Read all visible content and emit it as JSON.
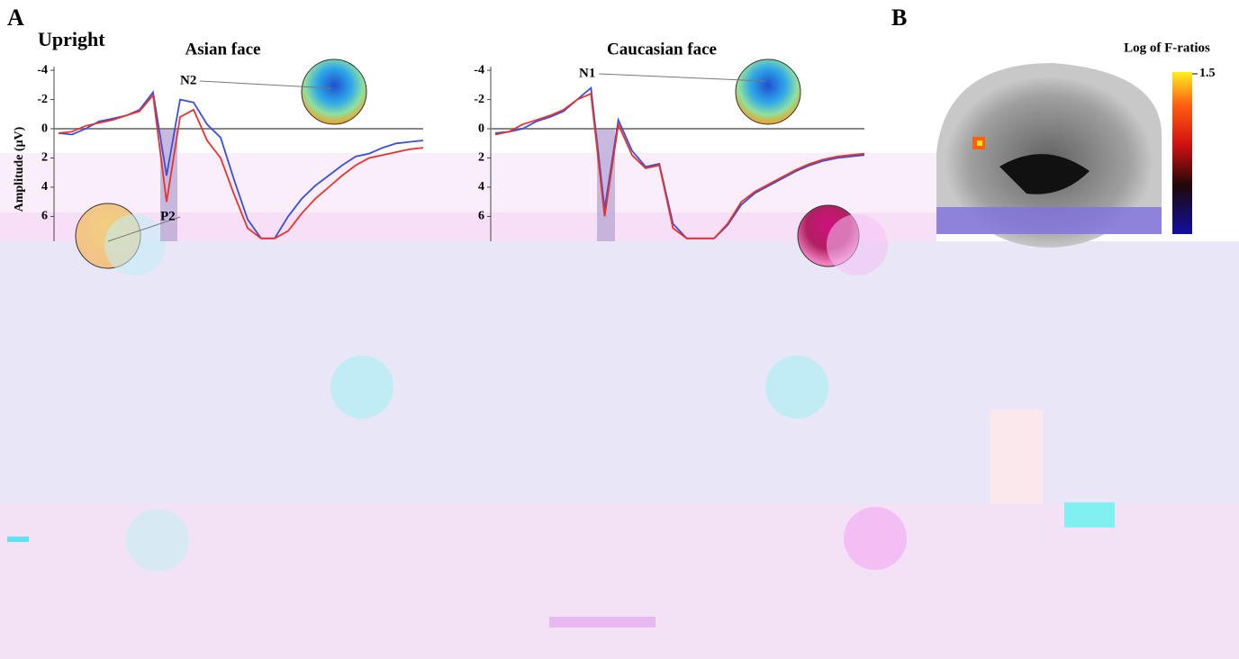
{
  "panel_labels": [
    "A",
    "B"
  ],
  "condition": "Upright",
  "colorbar": {
    "title": "Log of F-ratios",
    "max": 1.5
  },
  "chart_data": [
    {
      "type": "line",
      "title": "Asian face",
      "y_label": "Amplitude (μV)",
      "annotations": [
        "N2",
        "P2"
      ],
      "ylim": [
        -4.5,
        7.7
      ],
      "inverted": true,
      "yticks": [
        -4,
        -2,
        0,
        2,
        4,
        6
      ],
      "series": [
        {
          "color": "#3a4fd8",
          "values": [
            0.3,
            0.4,
            0.0,
            -0.5,
            -0.7,
            -0.9,
            -1.3,
            -2.5,
            3.2,
            -2.0,
            -1.8,
            -0.3,
            0.6,
            3.5,
            6.2,
            7.5,
            7.5,
            6.0,
            4.8,
            3.9,
            3.2,
            2.5,
            1.9,
            1.7,
            1.3,
            1.0,
            0.9,
            0.8
          ]
        },
        {
          "color": "#e8322d",
          "values": [
            0.3,
            0.2,
            -0.2,
            -0.4,
            -0.6,
            -0.9,
            -1.2,
            -2.3,
            5.0,
            -0.8,
            -1.3,
            0.8,
            2.0,
            4.5,
            6.8,
            7.5,
            7.5,
            7.0,
            5.8,
            4.8,
            4.0,
            3.2,
            2.5,
            2.0,
            1.8,
            1.6,
            1.4,
            1.3
          ]
        }
      ]
    },
    {
      "type": "line",
      "title": "Caucasian face",
      "annotations": [
        "N1"
      ],
      "ylim": [
        -4.5,
        7.7
      ],
      "inverted": true,
      "yticks": [
        -4,
        -2,
        0,
        2,
        4,
        6
      ],
      "series": [
        {
          "color": "#3a4fd8",
          "values": [
            0.3,
            0.2,
            0.0,
            -0.5,
            -0.8,
            -1.2,
            -2.0,
            -2.8,
            5.5,
            -0.6,
            1.5,
            2.6,
            2.4,
            6.5,
            7.5,
            7.5,
            7.5,
            6.6,
            5.2,
            4.4,
            3.9,
            3.4,
            2.9,
            2.5,
            2.2,
            2.0,
            1.9,
            1.8
          ]
        },
        {
          "color": "#e8322d",
          "values": [
            0.4,
            0.2,
            -0.3,
            -0.6,
            -0.9,
            -1.3,
            -2.0,
            -2.4,
            6.0,
            -0.3,
            1.8,
            2.7,
            2.5,
            6.8,
            7.5,
            7.5,
            7.5,
            6.5,
            5.0,
            4.3,
            3.8,
            3.3,
            2.8,
            2.4,
            2.1,
            1.9,
            1.8,
            1.7
          ]
        }
      ]
    }
  ]
}
